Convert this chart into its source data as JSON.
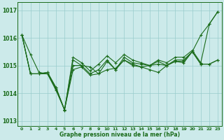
{
  "background_color": "#cceaea",
  "grid_color": "#99cccc",
  "line_color": "#1a6b1a",
  "text_color": "#1a6b1a",
  "xlabel": "Graphe pression niveau de la mer (hPa)",
  "ylim": [
    1012.8,
    1017.3
  ],
  "xlim": [
    -0.5,
    23.5
  ],
  "yticks": [
    1013,
    1014,
    1015,
    1016,
    1017
  ],
  "xticks": [
    0,
    1,
    2,
    3,
    4,
    5,
    6,
    7,
    8,
    9,
    10,
    11,
    12,
    13,
    14,
    15,
    16,
    17,
    18,
    19,
    20,
    21,
    22,
    23
  ],
  "series": [
    [
      1016.1,
      1015.4,
      1014.75,
      1014.7,
      1014.1,
      1013.4,
      1014.85,
      1014.95,
      1014.65,
      1014.7,
      1014.85,
      1014.9,
      1015.2,
      1015.05,
      1014.95,
      1014.85,
      1014.75,
      1015.0,
      1015.15,
      1015.1,
      1015.5,
      1016.1,
      1016.5,
      1016.95
    ],
    [
      1016.1,
      1014.7,
      1014.7,
      1014.7,
      1014.15,
      1013.4,
      1015.0,
      1015.0,
      1014.95,
      1014.7,
      1015.15,
      1014.85,
      1015.2,
      1015.0,
      1014.95,
      1015.0,
      1015.05,
      1015.0,
      1015.15,
      1015.15,
      1015.5,
      1015.05,
      1015.05,
      1015.2
    ],
    [
      1016.1,
      1014.7,
      1014.7,
      1014.75,
      1014.2,
      1013.4,
      1015.2,
      1015.0,
      1014.7,
      1014.85,
      1015.2,
      1014.85,
      1015.3,
      1015.1,
      1015.05,
      1015.0,
      1015.15,
      1015.0,
      1015.2,
      1015.2,
      1015.5,
      1015.05,
      1015.05,
      1015.2
    ],
    [
      1016.1,
      1014.7,
      1014.7,
      1014.75,
      1014.2,
      1013.38,
      1015.3,
      1015.1,
      1014.8,
      1015.05,
      1015.35,
      1015.1,
      1015.4,
      1015.2,
      1015.1,
      1015.0,
      1015.2,
      1015.1,
      1015.3,
      1015.3,
      1015.55,
      1015.1,
      1016.5,
      1016.95
    ]
  ]
}
